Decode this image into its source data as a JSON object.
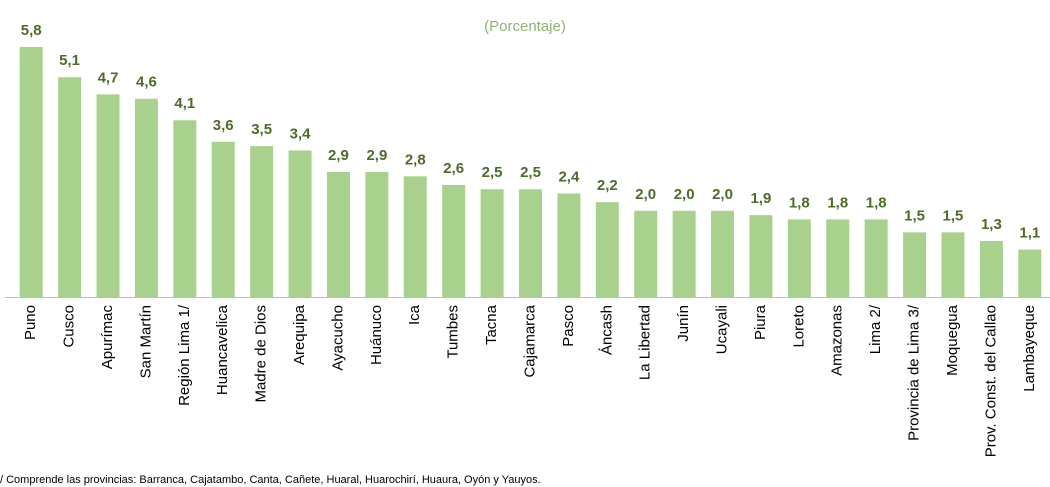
{
  "chart_data": {
    "type": "bar",
    "subtitle": "(Porcentaje)",
    "categories": [
      "Puno",
      "Cusco",
      "Apurímac",
      "San Martín",
      "Región Lima 1/",
      "Huancavelica",
      "Madre de Dios",
      "Arequipa",
      "Ayacucho",
      "Huánuco",
      "Ica",
      "Tumbes",
      "Tacna",
      "Cajamarca",
      "Pasco",
      "Áncash",
      "La Libertad",
      "Junín",
      "Ucayali",
      "Piura",
      "Loreto",
      "Amazonas",
      "Lima 2/",
      "Provincia de Lima 3/",
      "Moquegua",
      "Prov. Const. del Callao",
      "Lambayeque"
    ],
    "values": [
      5.8,
      5.1,
      4.7,
      4.6,
      4.1,
      3.6,
      3.5,
      3.4,
      2.9,
      2.9,
      2.8,
      2.6,
      2.5,
      2.5,
      2.4,
      2.2,
      2.0,
      2.0,
      2.0,
      1.9,
      1.8,
      1.8,
      1.8,
      1.5,
      1.5,
      1.3,
      1.1
    ],
    "value_labels": [
      "5,8",
      "5,1",
      "4,7",
      "4,6",
      "4,1",
      "3,6",
      "3,5",
      "3,4",
      "2,9",
      "2,9",
      "2,8",
      "2,6",
      "2,5",
      "2,5",
      "2,4",
      "2,2",
      "2,0",
      "2,0",
      "2,0",
      "1,9",
      "1,8",
      "1,8",
      "1,8",
      "1,5",
      "1,5",
      "1,3",
      "1,1"
    ],
    "color": "#a9d18e",
    "footnote": "/ Comprende las provincias: Barranca, Cajatambo, Canta, Cañete, Huaral, Huarochirí, Huaura, Oyón y Yauyos."
  }
}
